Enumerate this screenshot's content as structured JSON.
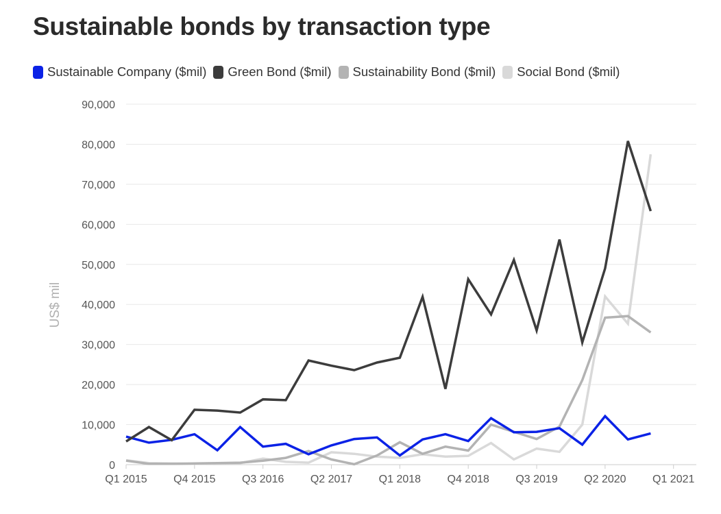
{
  "chart_data": {
    "type": "line",
    "title": "Sustainable bonds by transaction type",
    "ylabel": "US$ mil",
    "xlabel": "",
    "ylim": [
      0,
      90000
    ],
    "grid": true,
    "legend_position": "top",
    "y_ticks": [
      "0",
      "10,000",
      "20,000",
      "30,000",
      "40,000",
      "50,000",
      "60,000",
      "70,000",
      "80,000",
      "90,000"
    ],
    "x_ticks": [
      "Q1 2015",
      "Q4 2015",
      "Q3 2016",
      "Q2 2017",
      "Q1 2018",
      "Q4 2018",
      "Q3 2019",
      "Q2 2020",
      "Q1 2021"
    ],
    "categories": [
      "Q1 2015",
      "Q2 2015",
      "Q3 2015",
      "Q4 2015",
      "Q1 2016",
      "Q2 2016",
      "Q3 2016",
      "Q4 2016",
      "Q1 2017",
      "Q2 2017",
      "Q3 2017",
      "Q4 2017",
      "Q1 2018",
      "Q2 2018",
      "Q3 2018",
      "Q4 2018",
      "Q1 2019",
      "Q2 2019",
      "Q3 2019",
      "Q4 2019",
      "Q1 2020",
      "Q2 2020",
      "Q3 2020",
      "Q4 2020"
    ],
    "series": [
      {
        "name": "Sustainable Company ($mil)",
        "color": "#0b22e6",
        "values": [
          7000,
          5500,
          6200,
          7600,
          3600,
          9400,
          4500,
          5200,
          2600,
          4800,
          6400,
          6800,
          2300,
          6300,
          7600,
          5900,
          11600,
          8100,
          8200,
          9100,
          5000,
          12100,
          6300,
          7800
        ]
      },
      {
        "name": "Green Bond ($mil)",
        "color": "#3c3c3c",
        "values": [
          5800,
          9400,
          6100,
          13700,
          13500,
          13000,
          16300,
          16100,
          26000,
          24700,
          23600,
          25500,
          26700,
          41900,
          18900,
          46300,
          37500,
          51100,
          33500,
          56200,
          30500,
          49000,
          80800,
          63300
        ]
      },
      {
        "name": "Sustainability Bond ($mil)",
        "color": "#b3b3b3",
        "values": [
          1000,
          200,
          200,
          300,
          400,
          500,
          1000,
          1700,
          3400,
          1300,
          100,
          2300,
          5600,
          2700,
          4500,
          3500,
          10000,
          8200,
          6400,
          9500,
          21100,
          36700,
          37100,
          33000
        ]
      },
      {
        "name": "Social Bond ($mil)",
        "color": "#d9d9d9",
        "values": [
          1100,
          400,
          300,
          200,
          300,
          400,
          1500,
          700,
          500,
          3100,
          2700,
          2000,
          1700,
          2600,
          2000,
          2200,
          5400,
          1300,
          4000,
          3200,
          10000,
          42000,
          35200,
          77500
        ]
      }
    ]
  }
}
